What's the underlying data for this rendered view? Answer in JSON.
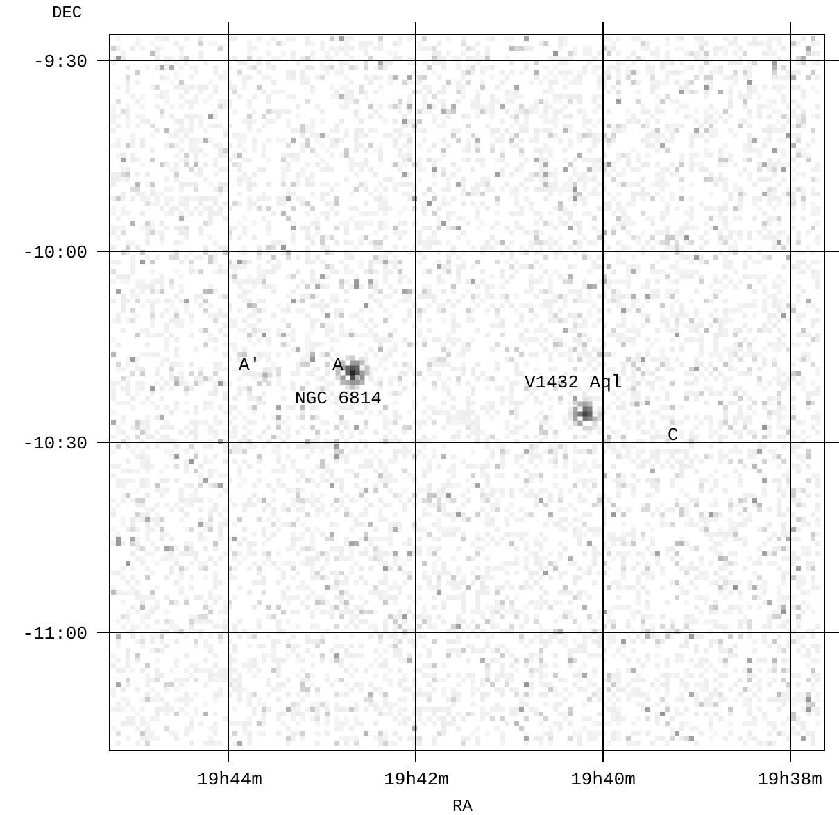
{
  "axes": {
    "y_title": "DEC",
    "x_title": "RA",
    "dec_ticks": [
      "-9:30",
      "-10:00",
      "-10:30",
      "-11:00"
    ],
    "ra_ticks": [
      "19h44m",
      "19h42m",
      "19h40m",
      "19h38m"
    ]
  },
  "sources": [
    {
      "label": "A'",
      "kind": "faint"
    },
    {
      "label": "A",
      "kind": "bright"
    },
    {
      "label": "NGC 6814",
      "kind": "name"
    },
    {
      "label": "V1432 Aql",
      "kind": "name"
    },
    {
      "label": "C",
      "kind": "faint"
    }
  ],
  "colors": {
    "background": "#ffffff",
    "grid": "#000000",
    "noise": "#b8b8b8"
  }
}
